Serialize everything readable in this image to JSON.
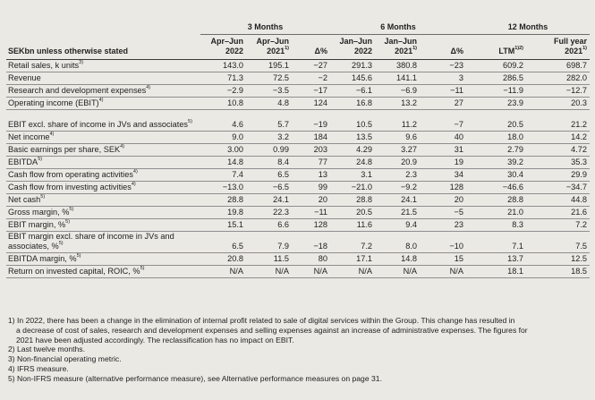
{
  "groups": [
    "3 Months",
    "6 Months",
    "12 Months"
  ],
  "headers": {
    "label": "SEKbn unless otherwise stated",
    "c1": [
      "Apr–Jun",
      "2022",
      ""
    ],
    "c2": [
      "Apr–Jun",
      "2021",
      "1)"
    ],
    "c3": [
      "Δ%",
      "",
      ""
    ],
    "c4": [
      "Jan–Jun",
      "2022",
      ""
    ],
    "c5": [
      "Jan–Jun",
      "2021",
      "1)"
    ],
    "c6": [
      "Δ%",
      "",
      ""
    ],
    "c7": [
      "LTM",
      "1)2)",
      ""
    ],
    "c8": [
      "Full year",
      "2021",
      "1)"
    ]
  },
  "rows": [
    {
      "label": "Retail sales, k units",
      "sup": "3)",
      "v": [
        "143.0",
        "195.1",
        "−27",
        "291.3",
        "380.8",
        "−23",
        "609.2",
        "698.7"
      ]
    },
    {
      "label": "Revenue",
      "sup": "",
      "v": [
        "71.3",
        "72.5",
        "−2",
        "145.6",
        "141.1",
        "3",
        "286.5",
        "282.0"
      ]
    },
    {
      "label": "Research and development expenses",
      "sup": "4)",
      "v": [
        "−2.9",
        "−3.5",
        "−17",
        "−6.1",
        "−6.9",
        "−11",
        "−11.9",
        "−12.7"
      ]
    },
    {
      "label": "Operating income (EBIT)",
      "sup": "4)",
      "v": [
        "10.8",
        "4.8",
        "124",
        "16.8",
        "13.2",
        "27",
        "23.9",
        "20.3"
      ]
    },
    {
      "label": "EBIT excl. share of income in JVs and associates",
      "sup": "5)",
      "v": [
        "4.6",
        "5.7",
        "−19",
        "10.5",
        "11.2",
        "−7",
        "20.5",
        "21.2"
      ]
    },
    {
      "label": "Net income",
      "sup": "4)",
      "v": [
        "9.0",
        "3.2",
        "184",
        "13.5",
        "9.6",
        "40",
        "18.0",
        "14.2"
      ]
    },
    {
      "label": "Basic earnings per share, SEK",
      "sup": "4)",
      "v": [
        "3.00",
        "0.99",
        "203",
        "4.29",
        "3.27",
        "31",
        "2.79",
        "4.72"
      ]
    },
    {
      "label": "EBITDA",
      "sup": "5)",
      "v": [
        "14.8",
        "8.4",
        "77",
        "24.8",
        "20.9",
        "19",
        "39.2",
        "35.3"
      ]
    },
    {
      "label": "Cash flow from operating activities",
      "sup": "4)",
      "v": [
        "7.4",
        "6.5",
        "13",
        "3.1",
        "2.3",
        "34",
        "30.4",
        "29.9"
      ]
    },
    {
      "label": "Cash flow from investing activities",
      "sup": "4)",
      "v": [
        "−13.0",
        "−6.5",
        "99",
        "−21.0",
        "−9.2",
        "128",
        "−46.6",
        "−34.7"
      ]
    },
    {
      "label": "Net cash",
      "sup": "5)",
      "v": [
        "28.8",
        "24.1",
        "20",
        "28.8",
        "24.1",
        "20",
        "28.8",
        "44.8"
      ]
    },
    {
      "label": "Gross margin, %",
      "sup": "5)",
      "v": [
        "19.8",
        "22.3",
        "−11",
        "20.5",
        "21.5",
        "−5",
        "21.0",
        "21.6"
      ]
    },
    {
      "label": "EBIT margin, %",
      "sup": "5)",
      "v": [
        "15.1",
        "6.6",
        "128",
        "11.6",
        "9.4",
        "23",
        "8.3",
        "7.2"
      ]
    },
    {
      "label": "EBIT margin excl. share of income in JVs and associates, %",
      "sup": "5)",
      "v": [
        "6.5",
        "7.9",
        "−18",
        "7.2",
        "8.0",
        "−10",
        "7.1",
        "7.5"
      ]
    },
    {
      "label": "EBITDA margin, %",
      "sup": "5)",
      "v": [
        "20.8",
        "11.5",
        "80",
        "17.1",
        "14.8",
        "15",
        "13.7",
        "12.5"
      ]
    },
    {
      "label": "Return on invested capital, ROIC, %",
      "sup": "5)",
      "v": [
        "N/A",
        "N/A",
        "N/A",
        "N/A",
        "N/A",
        "N/A",
        "18.1",
        "18.5"
      ]
    }
  ],
  "footnotes": [
    "1) In 2022, there has been a change in the elimination of internal profit related to sale of digital services within the Group. This change has resulted in",
    "a decrease of cost of sales, research and development expenses and selling expenses against an increase of administrative expenses. The figures for",
    "2021 have been adjusted accordingly. The reclassification has no impact on EBIT.",
    "2) Last twelve months.",
    "3) Non-financial operating metric.",
    "4) IFRS measure.",
    "5) Non-IFRS measure (alternative performance measure), see Alternative performance measures on page 31."
  ]
}
